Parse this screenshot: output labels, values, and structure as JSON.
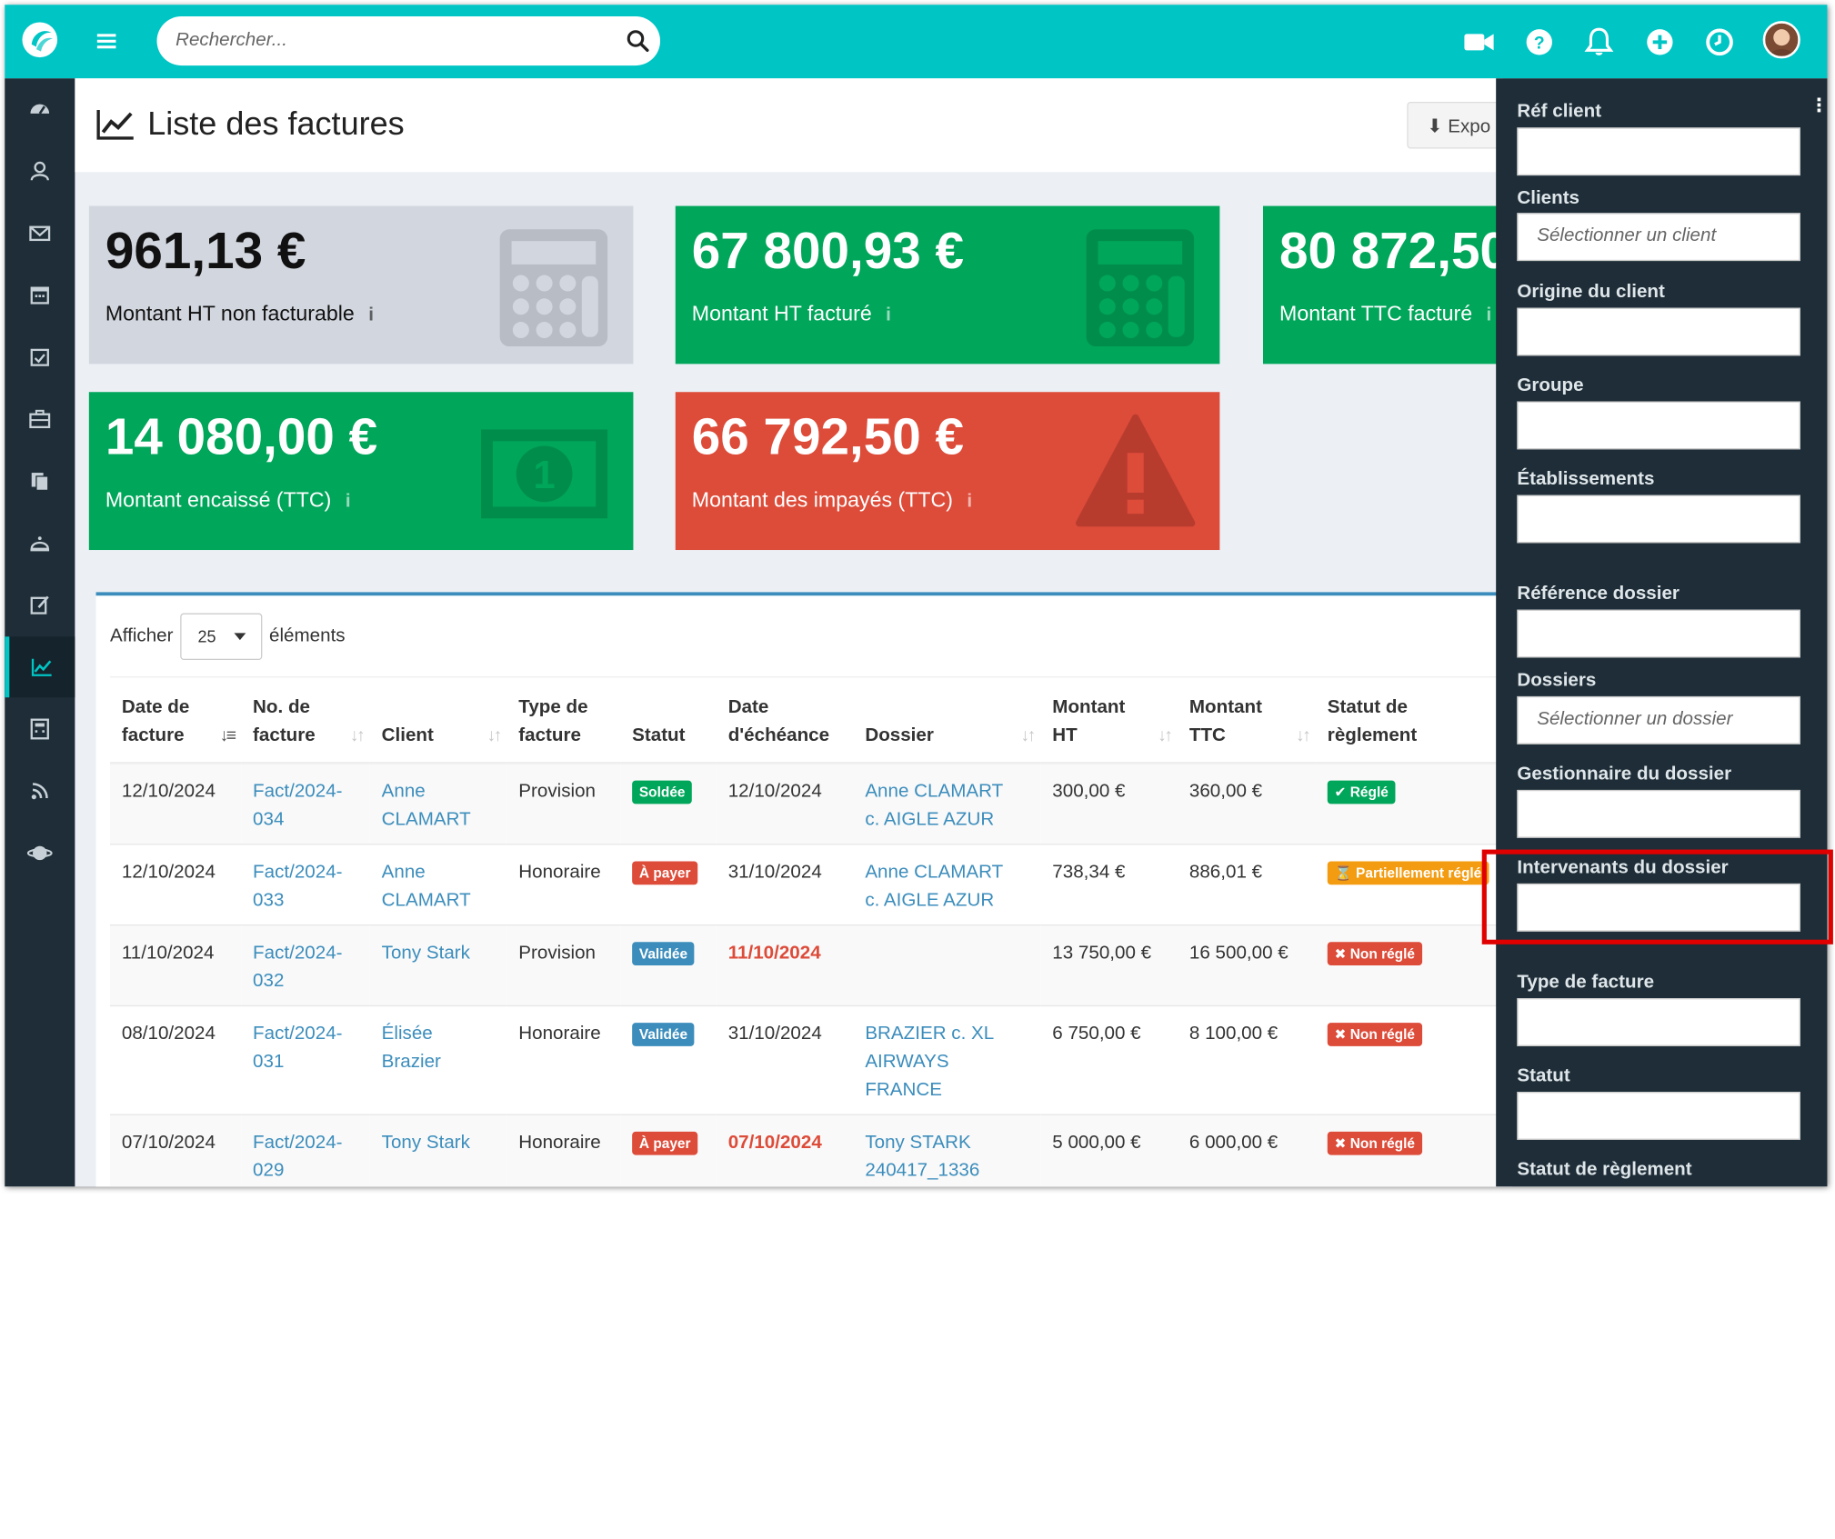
{
  "search": {
    "placeholder": "Rechercher..."
  },
  "page": {
    "title": "Liste des factures",
    "export_label": "Expo"
  },
  "cards": [
    {
      "amount": "961,13 €",
      "label": "Montant HT non facturable"
    },
    {
      "amount": "67 800,93 €",
      "label": "Montant HT facturé"
    },
    {
      "amount": "80 872,50",
      "label": "Montant TTC facturé"
    },
    {
      "amount": "14 080,00 €",
      "label": "Montant encaissé (TTC)"
    },
    {
      "amount": "66 792,50 €",
      "label": "Montant des impayés (TTC)"
    }
  ],
  "card_info_glyph": "i",
  "length_menu": {
    "prefix": "Afficher",
    "value": "25",
    "suffix": "éléments"
  },
  "table": {
    "headers": [
      [
        "Date de",
        "facture"
      ],
      [
        "No. de",
        "facture"
      ],
      [
        "",
        "Client"
      ],
      [
        "Type de",
        "facture"
      ],
      [
        "",
        "Statut"
      ],
      [
        "Date",
        "d'échéance"
      ],
      [
        "",
        "Dossier"
      ],
      [
        "Montant",
        "HT"
      ],
      [
        "Montant",
        "TTC"
      ],
      [
        "Statut de",
        "règlement"
      ]
    ],
    "rows": [
      {
        "date": "12/10/2024",
        "no": [
          "Fact/2024-",
          "034"
        ],
        "client": [
          "Anne",
          "CLAMART"
        ],
        "type": "Provision",
        "statut": "Soldée",
        "echeance": "12/10/2024",
        "dossier": [
          "Anne CLAMART",
          "c. AIGLE AZUR"
        ],
        "ht": "300,00 €",
        "ttc": "360,00 €",
        "reglement": "✔ Réglé"
      },
      {
        "date": "12/10/2024",
        "no": [
          "Fact/2024-",
          "033"
        ],
        "client": [
          "Anne",
          "CLAMART"
        ],
        "type": "Honoraire",
        "statut": "À payer",
        "echeance": "31/10/2024",
        "dossier": [
          "Anne CLAMART",
          "c. AIGLE AZUR"
        ],
        "ht": "738,34 €",
        "ttc": "886,01 €",
        "reglement": "⌛ Partiellement réglé"
      },
      {
        "date": "11/10/2024",
        "no": [
          "Fact/2024-",
          "032"
        ],
        "client": [
          "Tony Stark",
          ""
        ],
        "type": "Provision",
        "statut": "Validée",
        "echeance": "11/10/2024",
        "dossier": [
          "",
          ""
        ],
        "ht": "13 750,00 €",
        "ttc": "16 500,00 €",
        "reglement": "✖ Non réglé"
      },
      {
        "date": "08/10/2024",
        "no": [
          "Fact/2024-",
          "031"
        ],
        "client": [
          "Élisée",
          "Brazier"
        ],
        "type": "Honoraire",
        "statut": "Validée",
        "echeance": "31/10/2024",
        "dossier": [
          "BRAZIER c. XL",
          "AIRWAYS",
          "FRANCE"
        ],
        "ht": "6 750,00 €",
        "ttc": "8 100,00 €",
        "reglement": "✖ Non réglé"
      },
      {
        "date": "07/10/2024",
        "no": [
          "Fact/2024-",
          "029"
        ],
        "client": [
          "Tony Stark",
          ""
        ],
        "type": "Honoraire",
        "statut": "À payer",
        "echeance": "07/10/2024",
        "dossier": [
          "Tony STARK",
          "240417_1336"
        ],
        "ht": "5 000,00 €",
        "ttc": "6 000,00 €",
        "reglement": "✖ Non réglé"
      }
    ]
  },
  "filters": [
    {
      "label": "Réf client",
      "placeholder": ""
    },
    {
      "label": "Clients",
      "placeholder": "Sélectionner un client"
    },
    {
      "label": "Origine du client",
      "placeholder": ""
    },
    {
      "label": "Groupe",
      "placeholder": ""
    },
    {
      "label": "Établissements",
      "placeholder": ""
    },
    {
      "label": "Référence dossier",
      "placeholder": ""
    },
    {
      "label": "Dossiers",
      "placeholder": "Sélectionner un dossier"
    },
    {
      "label": "Gestionnaire du dossier",
      "placeholder": ""
    },
    {
      "label": "Intervenants du dossier",
      "placeholder": ""
    },
    {
      "label": "Type de facture",
      "placeholder": ""
    },
    {
      "label": "Statut",
      "placeholder": ""
    },
    {
      "label": "Statut de règlement",
      "placeholder": ""
    }
  ],
  "colors": {
    "topbar": "#00c5c5",
    "sidebar": "#1e2d37",
    "green": "#00a65a",
    "red": "#dd4b39",
    "blue": "#3c8dbc",
    "orange": "#f39c12",
    "highlight": "#e00000"
  },
  "icons": {
    "topbar": [
      "video-camera-icon",
      "help-icon",
      "bell-icon",
      "plus-circle-icon",
      "clock-icon"
    ],
    "sidebar": [
      "dashboard-icon",
      "contacts-icon",
      "envelope-icon",
      "calendar-icon",
      "calendar-check-icon",
      "briefcase-icon",
      "documents-icon",
      "service-bell-icon",
      "edit-icon",
      "chart-line-icon",
      "calculator-icon",
      "rss-icon",
      "support-icon"
    ]
  }
}
